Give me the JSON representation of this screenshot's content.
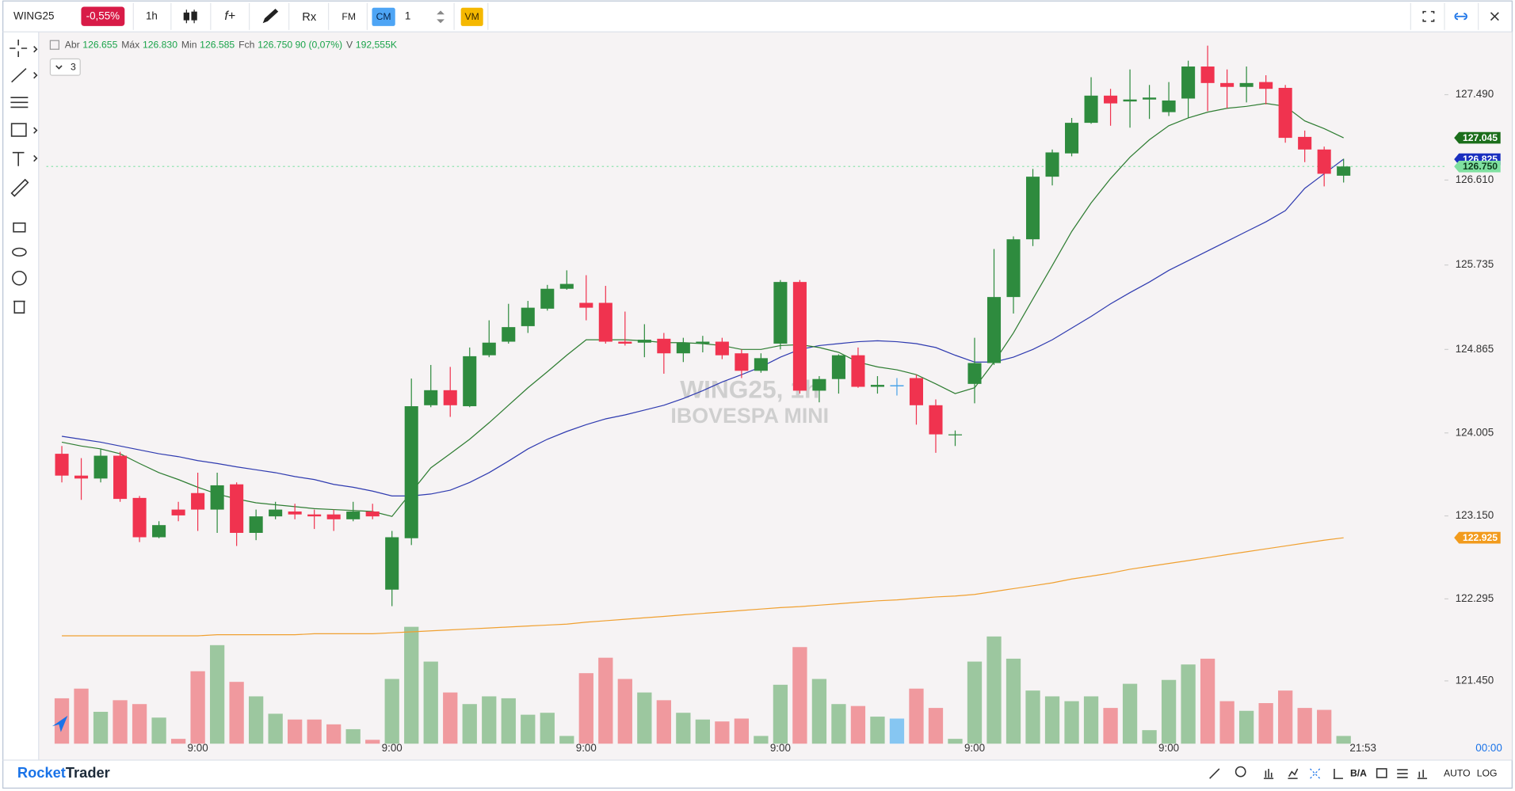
{
  "toolbar": {
    "symbol": "WING25",
    "change": "-0,55%",
    "interval": "1h",
    "function": "f+",
    "rx": "Rx",
    "fm": "FM",
    "cm": "CM",
    "count": "1",
    "vm": "VM"
  },
  "legend": {
    "items": [
      {
        "label": "Abr",
        "value": "126.655"
      },
      {
        "label": "Máx",
        "value": "126.830"
      },
      {
        "label": "Min",
        "value": "126.585"
      },
      {
        "label": "Fch",
        "value": "126.750 90 (0,07%)"
      },
      {
        "label": "V",
        "value": "192,555K"
      }
    ],
    "collapse": "3"
  },
  "watermark": {
    "line1": "WING25, 1h",
    "line2": "IBOVESPA MINI"
  },
  "footer": {
    "brand_first": "Rocket",
    "brand_second": "Trader",
    "ba": "B/A",
    "auto": "AUTO",
    "log": "LOG"
  },
  "chart_data": {
    "type": "candlestick",
    "categories": [
      null,
      null,
      null,
      null,
      null,
      null,
      null,
      "9:00",
      null,
      null,
      null,
      null,
      null,
      null,
      null,
      null,
      null,
      "9:00",
      null,
      null,
      null,
      null,
      null,
      null,
      null,
      null,
      null,
      "9:00",
      null,
      null,
      null,
      null,
      null,
      null,
      null,
      null,
      null,
      "9:00",
      null,
      null,
      null,
      null,
      null,
      null,
      null,
      null,
      null,
      "9:00",
      null,
      null,
      null,
      null,
      null,
      null,
      null,
      null,
      null,
      "9:00",
      null,
      null,
      null,
      null,
      null,
      null,
      null,
      null,
      null
    ],
    "candles": {
      "open": [
        123.79,
        123.565,
        123.535,
        123.77,
        123.335,
        122.93,
        123.215,
        123.385,
        123.215,
        123.475,
        122.975,
        123.145,
        123.195,
        123.165,
        123.165,
        123.115,
        123.195,
        122.39,
        122.92,
        124.29,
        124.445,
        124.28,
        124.805,
        124.945,
        125.105,
        125.285,
        125.49,
        125.345,
        125.345,
        124.945,
        124.935,
        124.975,
        124.825,
        124.925,
        124.945,
        124.825,
        124.645,
        124.925,
        125.56,
        124.44,
        124.56,
        124.805,
        124.48,
        124.49,
        124.57,
        124.29,
        123.98,
        124.51,
        124.725,
        125.405,
        126.0,
        126.645,
        126.885,
        127.2,
        127.48,
        127.42,
        127.44,
        127.31,
        127.45,
        127.78,
        127.61,
        127.57,
        127.62,
        127.56,
        127.055,
        126.925,
        126.655
      ],
      "high": [
        123.87,
        123.745,
        123.84,
        123.81,
        123.355,
        123.095,
        123.295,
        123.595,
        123.595,
        123.495,
        123.215,
        123.295,
        123.275,
        123.215,
        123.215,
        123.295,
        123.275,
        122.995,
        124.565,
        124.705,
        124.685,
        124.885,
        125.165,
        125.335,
        125.365,
        125.53,
        125.68,
        125.63,
        125.52,
        125.255,
        125.125,
        125.035,
        124.985,
        125.005,
        124.985,
        124.865,
        124.825,
        125.58,
        125.58,
        124.59,
        124.815,
        124.885,
        124.59,
        124.57,
        124.605,
        124.35,
        124.03,
        124.985,
        125.9,
        126.03,
        126.725,
        126.925,
        127.25,
        127.67,
        127.55,
        127.75,
        127.59,
        127.62,
        127.84,
        127.995,
        127.75,
        127.78,
        127.69,
        127.59,
        127.12,
        126.955,
        126.83
      ],
      "low": [
        123.495,
        123.315,
        123.495,
        123.295,
        122.88,
        122.92,
        123.095,
        122.995,
        122.975,
        122.84,
        122.9,
        123.115,
        123.115,
        123.015,
        122.995,
        123.095,
        123.115,
        122.22,
        122.85,
        124.27,
        124.17,
        124.27,
        124.785,
        124.925,
        125.035,
        125.265,
        125.48,
        125.165,
        124.925,
        124.905,
        124.785,
        124.615,
        124.735,
        124.835,
        124.765,
        124.57,
        124.625,
        124.865,
        124.41,
        124.32,
        124.41,
        124.47,
        124.41,
        124.39,
        124.09,
        123.8,
        123.87,
        124.31,
        124.705,
        125.235,
        125.93,
        126.555,
        126.855,
        127.19,
        127.17,
        127.15,
        127.24,
        127.27,
        127.25,
        127.32,
        127.35,
        127.41,
        127.39,
        126.995,
        126.795,
        126.545,
        126.585
      ],
      "close": [
        123.565,
        123.535,
        123.77,
        123.325,
        122.93,
        123.055,
        123.155,
        123.215,
        123.465,
        122.975,
        123.145,
        123.215,
        123.165,
        123.145,
        123.115,
        123.195,
        123.145,
        122.93,
        124.28,
        124.445,
        124.29,
        124.795,
        124.935,
        125.095,
        125.295,
        125.49,
        125.54,
        125.295,
        124.945,
        124.925,
        124.965,
        124.825,
        124.935,
        124.945,
        124.805,
        124.645,
        124.775,
        125.56,
        124.44,
        124.56,
        124.805,
        124.48,
        124.5,
        124.49,
        124.29,
        123.99,
        123.99,
        124.725,
        125.405,
        126.0,
        126.645,
        126.895,
        127.2,
        127.48,
        127.4,
        127.44,
        127.46,
        127.43,
        127.78,
        127.61,
        127.57,
        127.61,
        127.55,
        127.045,
        126.925,
        126.675,
        126.75
      ],
      "up_color": "#2e8b3e",
      "down_color": "#f0334f",
      "flat_color": "#4aa3e8"
    },
    "indicators": [
      {
        "color": "#f0a030",
        "values": [
          121.915,
          121.915,
          121.915,
          121.915,
          121.915,
          121.915,
          121.915,
          121.915,
          121.925,
          121.925,
          121.925,
          121.925,
          121.925,
          121.935,
          121.935,
          121.935,
          121.935,
          121.945,
          121.955,
          121.965,
          121.975,
          121.985,
          121.995,
          122.005,
          122.015,
          122.025,
          122.035,
          122.055,
          122.07,
          122.085,
          122.1,
          122.115,
          122.13,
          122.145,
          122.16,
          122.175,
          122.19,
          122.205,
          122.215,
          122.23,
          122.245,
          122.26,
          122.275,
          122.285,
          122.3,
          122.315,
          122.325,
          122.34,
          122.37,
          122.4,
          122.43,
          122.46,
          122.5,
          122.53,
          122.56,
          122.6,
          122.63,
          122.66,
          122.69,
          122.72,
          122.75,
          122.78,
          122.81,
          122.84,
          122.87,
          122.9,
          122.925
        ]
      },
      {
        "color": "#2f3bb0",
        "values": [
          123.97,
          123.94,
          123.91,
          123.87,
          123.83,
          123.79,
          123.76,
          123.72,
          123.69,
          123.655,
          123.625,
          123.595,
          123.555,
          123.525,
          123.475,
          123.445,
          123.405,
          123.355,
          123.355,
          123.375,
          123.415,
          123.495,
          123.595,
          123.715,
          123.84,
          123.94,
          124.02,
          124.09,
          124.15,
          124.19,
          124.24,
          124.29,
          124.36,
          124.44,
          124.53,
          124.605,
          124.685,
          124.785,
          124.865,
          124.905,
          124.925,
          124.945,
          124.955,
          124.945,
          124.925,
          124.885,
          124.805,
          124.735,
          124.735,
          124.785,
          124.865,
          124.965,
          125.085,
          125.205,
          125.335,
          125.45,
          125.56,
          125.68,
          125.78,
          125.88,
          125.98,
          126.08,
          126.18,
          126.295,
          126.525,
          126.675,
          126.825
        ]
      },
      {
        "color": "#2e7d32",
        "values": [
          123.91,
          123.87,
          123.84,
          123.79,
          123.69,
          123.595,
          123.525,
          123.445,
          123.375,
          123.325,
          123.285,
          123.265,
          123.245,
          123.225,
          123.215,
          123.205,
          123.195,
          123.145,
          123.395,
          123.645,
          123.79,
          123.94,
          124.11,
          124.29,
          124.47,
          124.635,
          124.805,
          124.965,
          124.965,
          124.965,
          124.955,
          124.935,
          124.935,
          124.925,
          124.905,
          124.865,
          124.865,
          124.905,
          124.915,
          124.885,
          124.835,
          124.735,
          124.685,
          124.655,
          124.605,
          124.51,
          124.41,
          124.47,
          124.735,
          125.035,
          125.385,
          125.73,
          126.08,
          126.375,
          126.625,
          126.845,
          127.025,
          127.17,
          127.25,
          127.31,
          127.35,
          127.37,
          127.4,
          127.37,
          127.22,
          127.14,
          127.045
        ]
      }
    ],
    "volume": {
      "values": [
        47,
        57,
        33,
        45,
        41,
        27,
        5,
        75,
        102,
        64,
        49,
        31,
        25,
        25,
        20,
        15,
        4,
        67,
        121,
        85,
        53,
        41,
        49,
        47,
        30,
        32,
        8,
        73,
        89,
        67,
        53,
        45,
        32,
        25,
        23,
        26,
        8,
        61,
        100,
        67,
        41,
        39,
        28,
        26,
        57,
        37,
        5,
        85,
        111,
        88,
        55,
        49,
        44,
        49,
        37,
        62,
        14,
        66,
        82,
        88,
        44,
        34,
        42,
        55,
        37,
        35,
        8
      ],
      "vlim": [
        0,
        130
      ],
      "up_color": "#9cc79f",
      "down_color": "#f0999e",
      "flat_color": "#86c6f2"
    },
    "ylim": [
      120.803,
      128.137
    ],
    "yticks": [
      {
        "value": 127.49,
        "label": "127.490"
      },
      {
        "value": 126.61,
        "label": "126.610"
      },
      125.735,
      124.865,
      124.005,
      {
        "value": 123.15,
        "label": "123.150"
      },
      122.295,
      {
        "value": 121.45,
        "label": "121.450"
      }
    ],
    "current_price": 126.75,
    "current_price_color": "#8fe3b0",
    "badges": [
      {
        "value": 127.045,
        "label": "127.045",
        "color": "#1b6e1b",
        "text_color": "#ffffff"
      },
      {
        "value": 126.825,
        "label": "126.825",
        "color": "#1a2fbf",
        "text_color": "#ffffff"
      },
      {
        "value": 126.75,
        "label": "126.750",
        "color": "#7fe0a0",
        "text_color": "#0d3b1c"
      },
      {
        "value": 122.925,
        "label": "122.925",
        "color": "#f29b1d",
        "text_color": "#ffffff"
      }
    ],
    "last_time": "21:53",
    "corner_time": "00:00"
  }
}
